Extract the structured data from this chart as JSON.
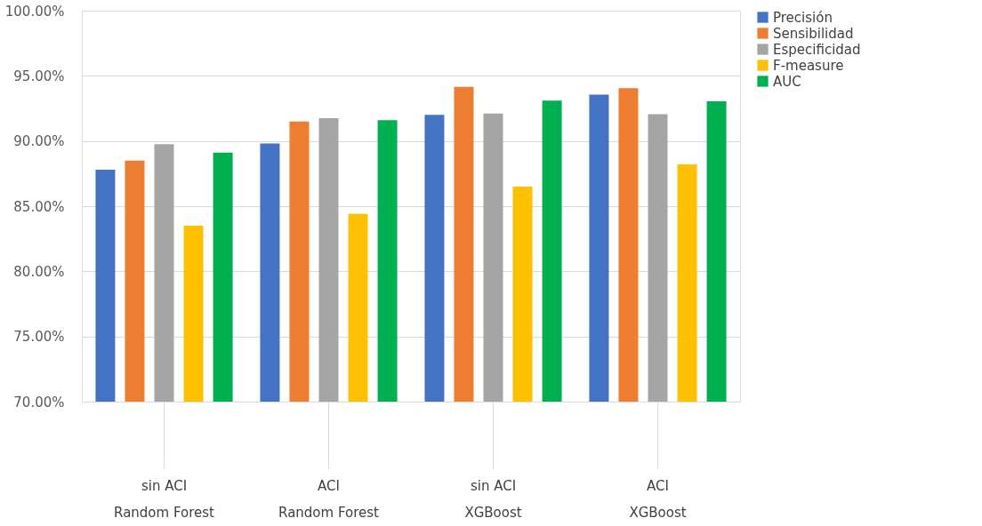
{
  "chart_data": {
    "type": "bar",
    "categories": [
      "sin ACI\nRandom Forest",
      "ACI\nRandom Forest",
      "sin ACI\nXGBoost",
      "ACI\nXGBoost"
    ],
    "series": [
      {
        "name": "Precisión",
        "color": "#4472c4",
        "values": [
          87.8,
          89.8,
          92.0,
          93.55
        ]
      },
      {
        "name": "Sensibilidad",
        "color": "#ed7d31",
        "values": [
          88.5,
          91.5,
          94.15,
          94.05
        ]
      },
      {
        "name": "Especificidad",
        "color": "#a5a5a5",
        "values": [
          89.75,
          91.75,
          92.1,
          92.05
        ]
      },
      {
        "name": "F-measure",
        "color": "#ffc000",
        "values": [
          83.5,
          84.4,
          86.5,
          88.2
        ]
      },
      {
        "name": "AUC",
        "color": "#00b050",
        "values": [
          89.1,
          91.6,
          93.1,
          93.05
        ]
      }
    ],
    "ylim": [
      70,
      100
    ],
    "yticks": [
      {
        "value": 70,
        "label": "70.00%"
      },
      {
        "value": 75,
        "label": "75.00%"
      },
      {
        "value": 80,
        "label": "80.00%"
      },
      {
        "value": 85,
        "label": "85.00%"
      },
      {
        "value": 90,
        "label": "90.00%"
      },
      {
        "value": 95,
        "label": "95.00%"
      },
      {
        "value": 100,
        "label": "100.00%"
      }
    ],
    "grid": "y",
    "legend": "right"
  }
}
